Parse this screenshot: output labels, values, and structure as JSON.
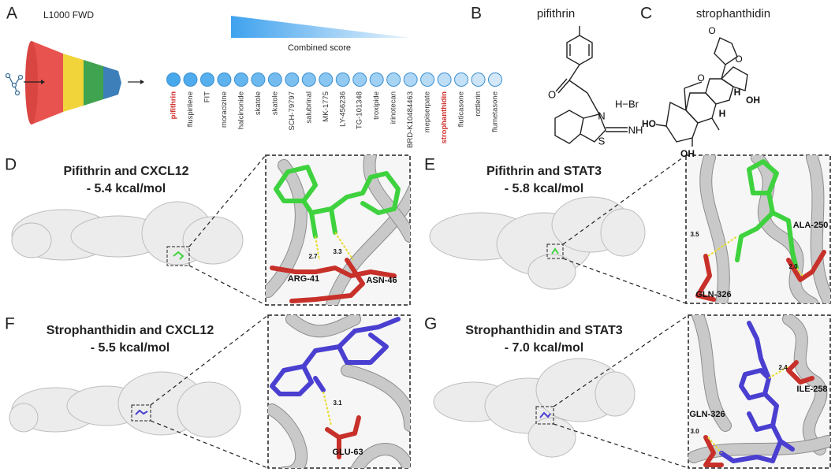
{
  "panels": {
    "a": {
      "letter": "A",
      "title": "L1000 FWD",
      "scale_label": "Combined score",
      "highlight_color": "#d0312d",
      "compounds": [
        {
          "name": "pifithrin",
          "highlight": true
        },
        {
          "name": "fluspirilene",
          "highlight": false
        },
        {
          "name": "FIT",
          "highlight": false
        },
        {
          "name": "moracizine",
          "highlight": false
        },
        {
          "name": "halcinonide",
          "highlight": false
        },
        {
          "name": "skatole",
          "highlight": false
        },
        {
          "name": "skatole",
          "highlight": false
        },
        {
          "name": "SCH-79797",
          "highlight": false
        },
        {
          "name": "salubrinal",
          "highlight": false
        },
        {
          "name": "MK-1775",
          "highlight": false
        },
        {
          "name": "LY-456236",
          "highlight": false
        },
        {
          "name": "TG-101348",
          "highlight": false
        },
        {
          "name": "troxipide",
          "highlight": false
        },
        {
          "name": "irinotecan",
          "highlight": false
        },
        {
          "name": "BRD-K10484463",
          "highlight": false
        },
        {
          "name": "mepiserpate",
          "highlight": false
        },
        {
          "name": "strophanthidin",
          "highlight": true
        },
        {
          "name": "fluticasone",
          "highlight": false
        },
        {
          "name": "rottlerin",
          "highlight": false
        },
        {
          "name": "flumetasone",
          "highlight": false
        }
      ]
    },
    "b": {
      "letter": "B",
      "title": "pifithrin",
      "atoms": [
        "O",
        "N",
        "S",
        "NH",
        "H−Br"
      ]
    },
    "c": {
      "letter": "C",
      "title": "strophanthidin",
      "atoms": [
        "O",
        "O",
        "O",
        "H",
        "H",
        "OH",
        "HO",
        "OH"
      ]
    },
    "d": {
      "letter": "D",
      "title": "Pifithrin and CXCL12",
      "energy": "- 5.4 kcal/mol",
      "residues": [
        "ARG-41",
        "ASN-46"
      ],
      "distances": [
        "2.7",
        "3.3"
      ]
    },
    "e": {
      "letter": "E",
      "title": "Pifithrin and STAT3",
      "energy": "- 5.8 kcal/mol",
      "residues": [
        "ALA-250",
        "GLN-326"
      ],
      "distances": [
        "3.5",
        "2.0"
      ]
    },
    "f": {
      "letter": "F",
      "title": "Strophanthidin and CXCL12",
      "energy": "- 5.5 kcal/mol",
      "residues": [
        "GLU-63"
      ],
      "distances": [
        "3.1"
      ]
    },
    "g": {
      "letter": "G",
      "title": "Strophanthidin and STAT3",
      "energy": "- 7.0 kcal/mol",
      "residues": [
        "ILE-258",
        "GLN-326"
      ],
      "distances": [
        "2.4",
        "3.0"
      ]
    }
  }
}
